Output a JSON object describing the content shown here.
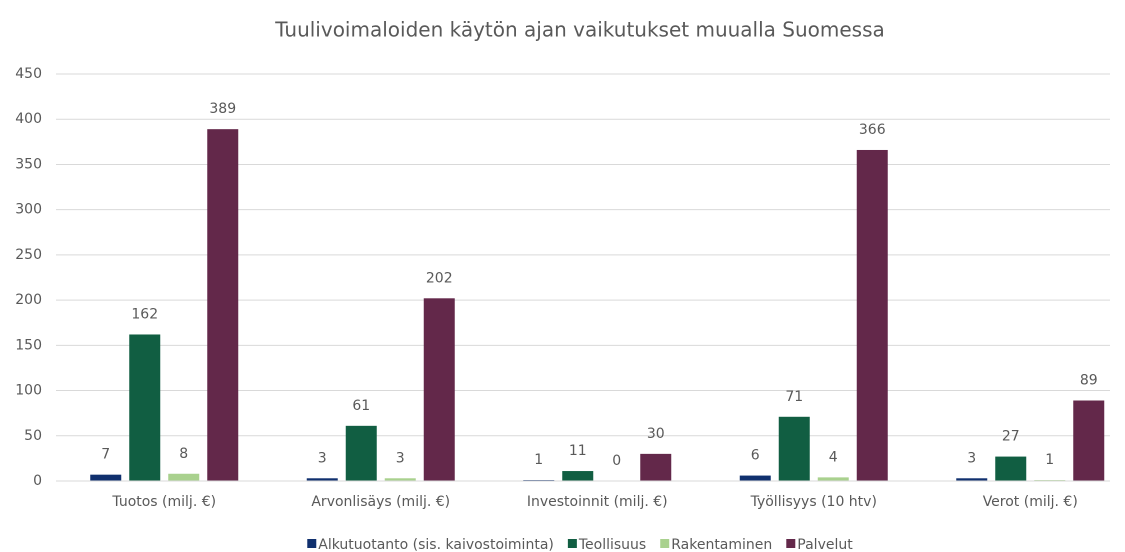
{
  "chart_data": {
    "type": "bar",
    "title": "Tuulivoimaloiden käytön ajan vaikutukset muualla Suomessa",
    "categories": [
      "Tuotos (milj. €)",
      "Arvonlisäys (milj. €)",
      "Investoinnit (milj. €)",
      "Työllisyys (10 htv)",
      "Verot (milj. €)"
    ],
    "series": [
      {
        "name": "Alkutuotanto (sis. kaivostoiminta)",
        "color": "#10306e",
        "values": [
          7,
          3,
          1,
          6,
          3
        ]
      },
      {
        "name": "Teollisuus",
        "color": "#115e42",
        "values": [
          162,
          61,
          11,
          71,
          27
        ]
      },
      {
        "name": "Rakentaminen",
        "color": "#a9d18e",
        "values": [
          8,
          3,
          0,
          4,
          1
        ]
      },
      {
        "name": "Palvelut",
        "color": "#63284a",
        "values": [
          389,
          202,
          30,
          366,
          89
        ]
      }
    ],
    "ylim": [
      0,
      450
    ],
    "yticks": [
      0,
      50,
      100,
      150,
      200,
      250,
      300,
      350,
      400,
      450
    ],
    "grid": true,
    "legend": "bottom"
  }
}
